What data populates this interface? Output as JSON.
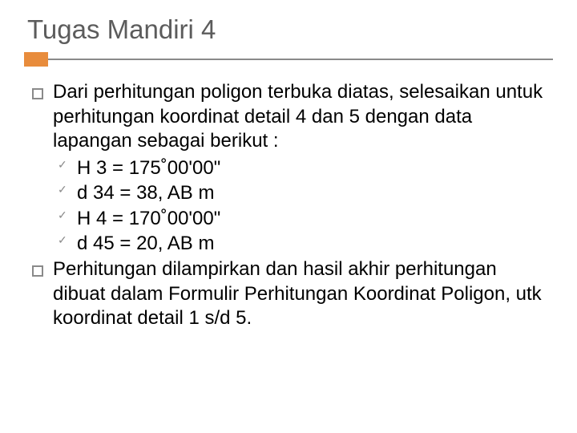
{
  "title": "Tugas Mandiri 4",
  "colors": {
    "title_color": "#5c5c5c",
    "accent_color": "#e88c3c",
    "line_color": "#8a8a8a",
    "text_color": "#000000",
    "bullet_border": "#8a8a8a",
    "check_color": "#8a8a8a",
    "background": "#ffffff"
  },
  "typography": {
    "title_fontsize": 33,
    "body_fontsize": 24,
    "font_family": "Arial"
  },
  "items": [
    {
      "text": "Dari perhitungan poligon terbuka diatas, selesaikan untuk perhitungan koordinat detail 4 dan 5 dengan data lapangan sebagai berikut :",
      "subitems": [
        "H 3 = 175˚00'00\"",
        "d 34 = 38, AB m",
        "H 4 = 170˚00'00\"",
        "d 45 = 20, AB m"
      ]
    },
    {
      "text": "Perhitungan dilampirkan dan hasil akhir perhitungan dibuat dalam Formulir Perhitungan Koordinat Poligon, utk koordinat detail 1 s/d 5.",
      "subitems": []
    }
  ]
}
